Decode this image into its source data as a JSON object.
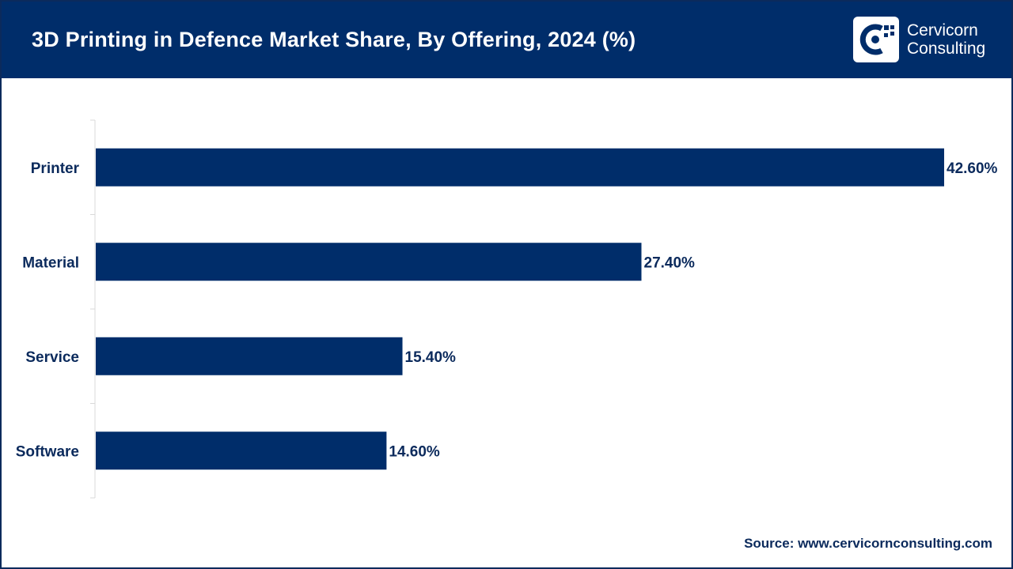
{
  "header": {
    "title": "3D Printing in Defence Market Share, By Offering, 2024 (%)"
  },
  "logo": {
    "line1": "Cervicorn",
    "line2": "Consulting"
  },
  "footer": {
    "source": "Source: www.cervicornconsulting.com"
  },
  "colors": {
    "header_bg": "#002d6a",
    "bar": "#002d6a",
    "text": "#0b2a5c"
  },
  "chart_data": {
    "type": "bar",
    "orientation": "horizontal",
    "title": "3D Printing in Defence Market Share, By Offering, 2024 (%)",
    "xlabel": "",
    "ylabel": "",
    "grid": false,
    "xlim": [
      0,
      42.6
    ],
    "categories": [
      "Printer",
      "Material",
      "Service",
      "Software"
    ],
    "values": [
      42.6,
      27.4,
      15.4,
      14.6
    ],
    "labels": [
      "42.60%",
      "27.40%",
      "15.40%",
      "14.60%"
    ]
  }
}
